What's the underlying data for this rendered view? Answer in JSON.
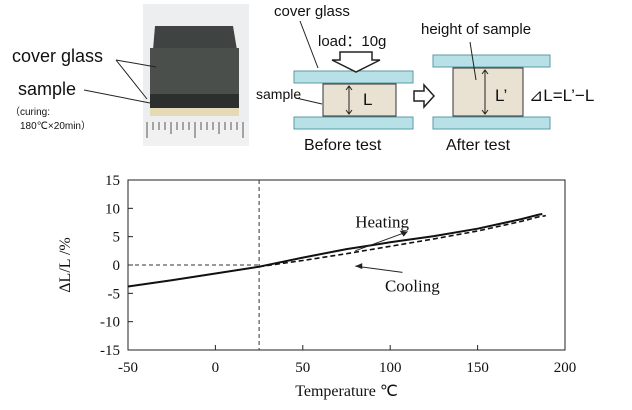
{
  "photo": {
    "labels": {
      "cover_glass": "cover glass",
      "sample": "sample",
      "curing_line1": "（curing:",
      "curing_line2": "180℃×20min）"
    }
  },
  "diagram": {
    "cover_glass": "cover glass",
    "load": "load：10g",
    "height_of_sample": "height of sample",
    "sample": "sample",
    "L": "L",
    "L_prime": "L’",
    "formula": "⊿L=L’−L",
    "before_test": "Before test",
    "after_test": "After test",
    "colors": {
      "glass": "#b7e1e6",
      "glass_stroke": "#5a9aa5",
      "sample": "#e9e2d2",
      "sample_stroke": "#333333"
    }
  },
  "chart_data": {
    "type": "line",
    "xlabel": "Temperature ℃",
    "ylabel": "ΔL/L /%",
    "xlim": [
      -50,
      200
    ],
    "ylim": [
      -15,
      15
    ],
    "xticks": [
      -50,
      0,
      50,
      100,
      150,
      200
    ],
    "yticks": [
      15,
      10,
      5,
      0,
      -5,
      -10,
      -15
    ],
    "grid": false,
    "series": [
      {
        "style": "solid",
        "x": [
          -50,
          -25,
          0,
          25,
          50,
          75,
          100,
          125,
          150,
          175,
          185,
          187
        ],
        "y": [
          -3.8,
          -2.7,
          -1.5,
          -0.3,
          1.3,
          2.8,
          4.0,
          5.1,
          6.4,
          8.1,
          8.9,
          9.0
        ]
      },
      {
        "style": "dashed",
        "x": [
          25,
          50,
          75,
          100,
          125,
          150,
          175,
          185,
          189
        ],
        "y": [
          -0.3,
          0.8,
          2.0,
          3.3,
          4.6,
          6.0,
          7.7,
          8.5,
          8.7
        ]
      }
    ],
    "annotations": {
      "heating": "Heating",
      "cooling": "Cooling",
      "ref_x": 25,
      "ref_y": 0
    }
  }
}
